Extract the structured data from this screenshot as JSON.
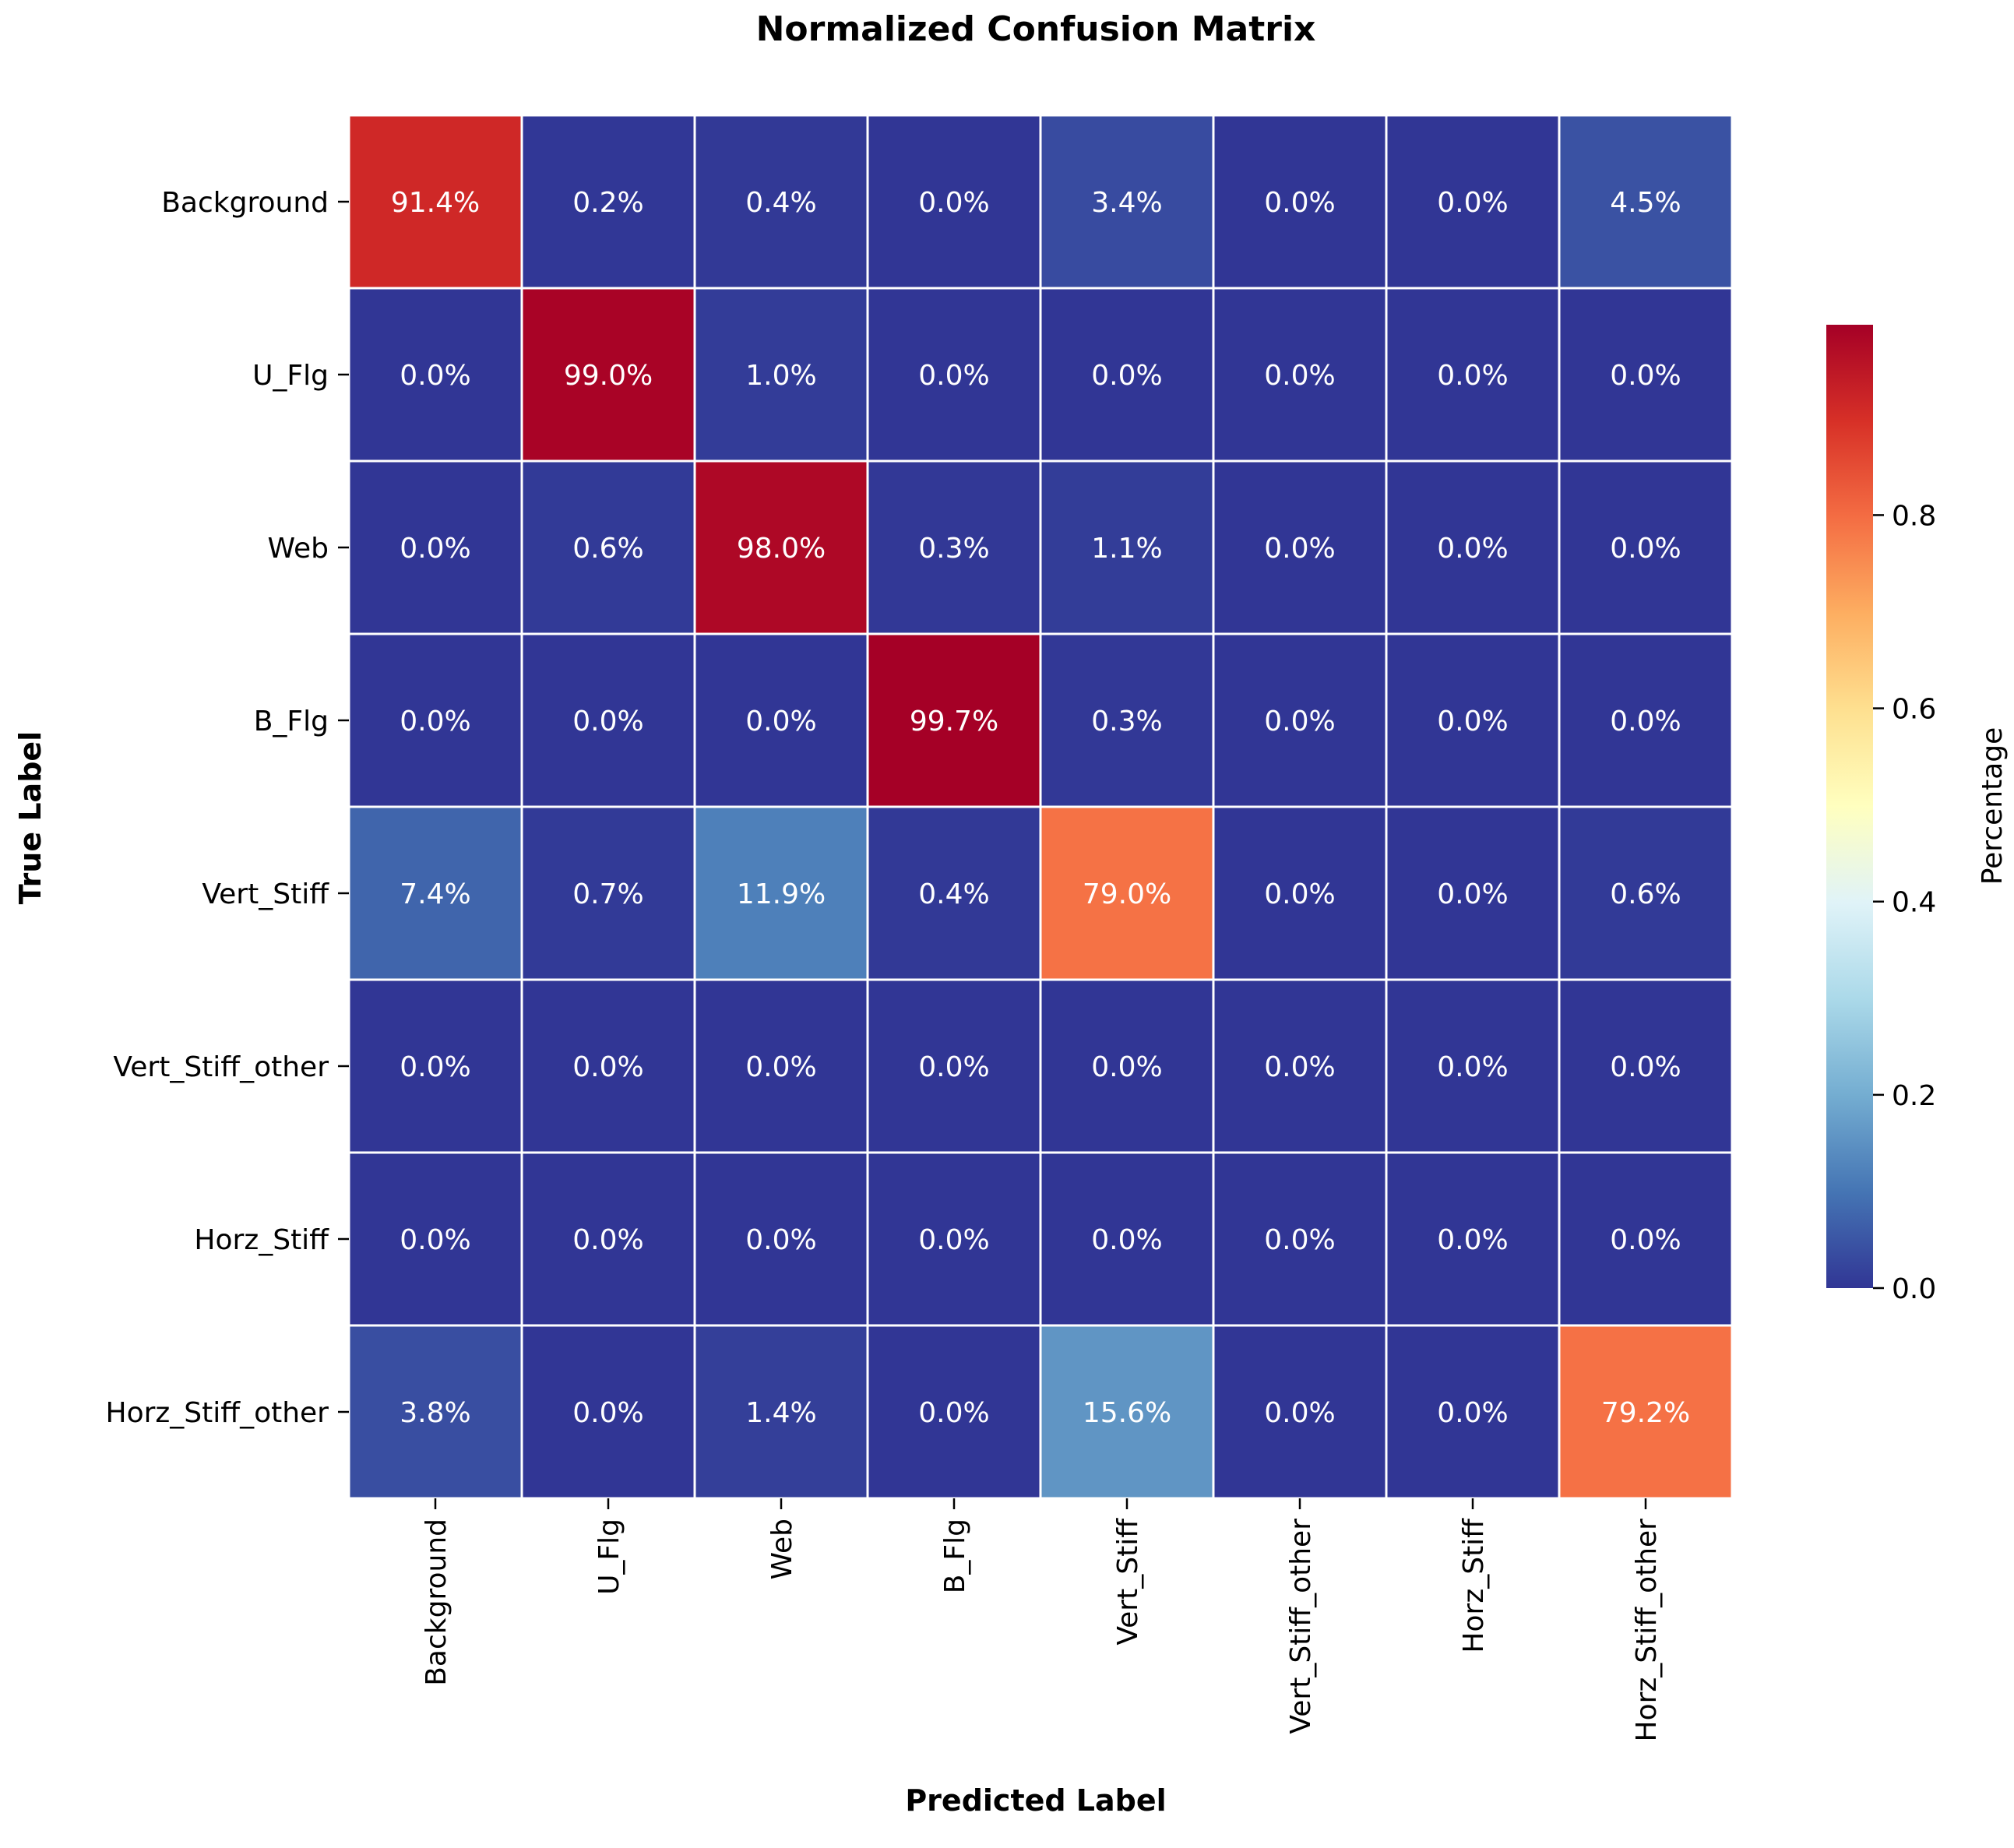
{
  "chart_data": {
    "type": "heatmap",
    "title": "Normalized Confusion Matrix",
    "xlabel": "Predicted Label",
    "ylabel": "True Label",
    "x_categories": [
      "Background",
      "U_Flg",
      "Web",
      "B_Flg",
      "Vert_Stiff",
      "Vert_Stiff_other",
      "Horz_Stiff",
      "Horz_Stiff_other"
    ],
    "y_categories": [
      "Background",
      "U_Flg",
      "Web",
      "B_Flg",
      "Vert_Stiff",
      "Vert_Stiff_other",
      "Horz_Stiff",
      "Horz_Stiff_other"
    ],
    "values": [
      [
        0.914,
        0.002,
        0.004,
        0.0,
        0.034,
        0.0,
        0.0,
        0.045
      ],
      [
        0.0,
        0.99,
        0.01,
        0.0,
        0.0,
        0.0,
        0.0,
        0.0
      ],
      [
        0.0,
        0.006,
        0.98,
        0.003,
        0.011,
        0.0,
        0.0,
        0.0
      ],
      [
        0.0,
        0.0,
        0.0,
        0.997,
        0.003,
        0.0,
        0.0,
        0.0
      ],
      [
        0.074,
        0.007,
        0.119,
        0.004,
        0.79,
        0.0,
        0.0,
        0.006
      ],
      [
        0.0,
        0.0,
        0.0,
        0.0,
        0.0,
        0.0,
        0.0,
        0.0
      ],
      [
        0.0,
        0.0,
        0.0,
        0.0,
        0.0,
        0.0,
        0.0,
        0.0
      ],
      [
        0.038,
        0.0,
        0.014,
        0.0,
        0.156,
        0.0,
        0.0,
        0.792
      ]
    ],
    "cell_labels": [
      [
        "91.4%",
        "0.2%",
        "0.4%",
        "0.0%",
        "3.4%",
        "0.0%",
        "0.0%",
        "4.5%"
      ],
      [
        "0.0%",
        "99.0%",
        "1.0%",
        "0.0%",
        "0.0%",
        "0.0%",
        "0.0%",
        "0.0%"
      ],
      [
        "0.0%",
        "0.6%",
        "98.0%",
        "0.3%",
        "1.1%",
        "0.0%",
        "0.0%",
        "0.0%"
      ],
      [
        "0.0%",
        "0.0%",
        "0.0%",
        "99.7%",
        "0.3%",
        "0.0%",
        "0.0%",
        "0.0%"
      ],
      [
        "7.4%",
        "0.7%",
        "11.9%",
        "0.4%",
        "79.0%",
        "0.0%",
        "0.0%",
        "0.6%"
      ],
      [
        "0.0%",
        "0.0%",
        "0.0%",
        "0.0%",
        "0.0%",
        "0.0%",
        "0.0%",
        "0.0%"
      ],
      [
        "0.0%",
        "0.0%",
        "0.0%",
        "0.0%",
        "0.0%",
        "0.0%",
        "0.0%",
        "0.0%"
      ],
      [
        "3.8%",
        "0.0%",
        "1.4%",
        "0.0%",
        "15.6%",
        "0.0%",
        "0.0%",
        "79.2%"
      ]
    ],
    "colormap": "RdYlBu_r",
    "colormap_stops": [
      "#313695",
      "#4575b4",
      "#74add1",
      "#abd9e9",
      "#e0f3f8",
      "#ffffbf",
      "#fee090",
      "#fdae61",
      "#f46d43",
      "#d73027",
      "#a50026"
    ],
    "vmin": 0.0,
    "vmax": 0.997,
    "cell_border_color": "#ffffff",
    "colorbar": {
      "label": "Percentage",
      "ticks": [
        0.0,
        0.2,
        0.4,
        0.6,
        0.8
      ],
      "tick_labels": [
        "0.0",
        "0.2",
        "0.4",
        "0.6",
        "0.8"
      ]
    }
  }
}
